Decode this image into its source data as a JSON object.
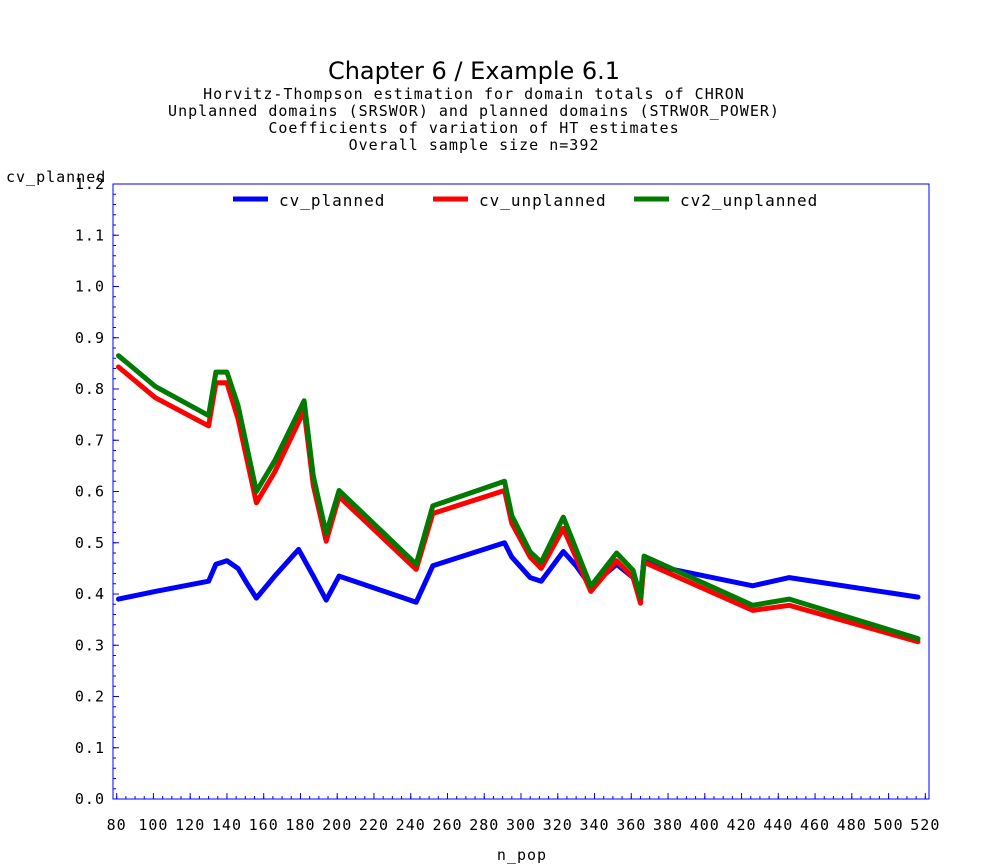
{
  "titles": {
    "main": "Chapter 6 / Example 6.1",
    "line1": "Horvitz-Thompson estimation for domain totals of CHRON",
    "line2": "Unplanned domains (SRSWOR) and planned domains (STRWOR_POWER)",
    "line3": "Coefficients of variation of HT estimates",
    "line4": "Overall sample size n=392"
  },
  "chart_data": {
    "type": "line",
    "title": "Chapter 6 / Example 6.1",
    "xlabel": "n_pop",
    "ylabel": "cv_planned",
    "xlim": [
      78,
      522
    ],
    "ylim": [
      0,
      1.2
    ],
    "xticks": [
      80,
      100,
      120,
      140,
      160,
      180,
      200,
      220,
      240,
      260,
      280,
      300,
      320,
      340,
      360,
      380,
      400,
      420,
      440,
      460,
      480,
      500,
      520
    ],
    "yticks": [
      0.0,
      0.1,
      0.2,
      0.3,
      0.4,
      0.5,
      0.6,
      0.7,
      0.8,
      0.9,
      1.0,
      1.1,
      1.2
    ],
    "legend_position": "top",
    "series": [
      {
        "name": "cv_planned",
        "color": "#0000ff",
        "points": [
          [
            81,
            0.39
          ],
          [
            101,
            0.405
          ],
          [
            130,
            0.425
          ],
          [
            134,
            0.458
          ],
          [
            140,
            0.465
          ],
          [
            146,
            0.45
          ],
          [
            151,
            0.42
          ],
          [
            156,
            0.392
          ],
          [
            166,
            0.435
          ],
          [
            179,
            0.487
          ],
          [
            187,
            0.435
          ],
          [
            194,
            0.388
          ],
          [
            201,
            0.435
          ],
          [
            243,
            0.384
          ],
          [
            252,
            0.455
          ],
          [
            291,
            0.5
          ],
          [
            295,
            0.472
          ],
          [
            305,
            0.432
          ],
          [
            311,
            0.425
          ],
          [
            323,
            0.483
          ],
          [
            330,
            0.455
          ],
          [
            338,
            0.415
          ],
          [
            352,
            0.458
          ],
          [
            361,
            0.432
          ],
          [
            365,
            0.4
          ],
          [
            367,
            0.47
          ],
          [
            377,
            0.452
          ],
          [
            426,
            0.416
          ],
          [
            446,
            0.432
          ],
          [
            516,
            0.394
          ]
        ]
      },
      {
        "name": "cv_unplanned",
        "color": "#ff0000",
        "points": [
          [
            81,
            0.843
          ],
          [
            101,
            0.783
          ],
          [
            130,
            0.728
          ],
          [
            134,
            0.812
          ],
          [
            140,
            0.812
          ],
          [
            146,
            0.742
          ],
          [
            156,
            0.578
          ],
          [
            166,
            0.638
          ],
          [
            182,
            0.758
          ],
          [
            187,
            0.612
          ],
          [
            194,
            0.503
          ],
          [
            201,
            0.59
          ],
          [
            243,
            0.448
          ],
          [
            252,
            0.557
          ],
          [
            291,
            0.602
          ],
          [
            295,
            0.538
          ],
          [
            305,
            0.472
          ],
          [
            311,
            0.45
          ],
          [
            323,
            0.528
          ],
          [
            338,
            0.405
          ],
          [
            352,
            0.465
          ],
          [
            361,
            0.432
          ],
          [
            365,
            0.382
          ],
          [
            367,
            0.462
          ],
          [
            426,
            0.368
          ],
          [
            446,
            0.378
          ],
          [
            516,
            0.307
          ]
        ]
      },
      {
        "name": "cv2_unplanned",
        "color": "#007a00",
        "points": [
          [
            81,
            0.865
          ],
          [
            101,
            0.805
          ],
          [
            130,
            0.748
          ],
          [
            134,
            0.833
          ],
          [
            140,
            0.833
          ],
          [
            146,
            0.768
          ],
          [
            156,
            0.6
          ],
          [
            166,
            0.66
          ],
          [
            182,
            0.777
          ],
          [
            187,
            0.63
          ],
          [
            194,
            0.518
          ],
          [
            201,
            0.602
          ],
          [
            243,
            0.458
          ],
          [
            252,
            0.572
          ],
          [
            291,
            0.62
          ],
          [
            295,
            0.553
          ],
          [
            305,
            0.482
          ],
          [
            311,
            0.462
          ],
          [
            323,
            0.55
          ],
          [
            338,
            0.415
          ],
          [
            352,
            0.48
          ],
          [
            361,
            0.446
          ],
          [
            365,
            0.394
          ],
          [
            367,
            0.474
          ],
          [
            426,
            0.378
          ],
          [
            446,
            0.39
          ],
          [
            516,
            0.313
          ]
        ]
      }
    ]
  }
}
